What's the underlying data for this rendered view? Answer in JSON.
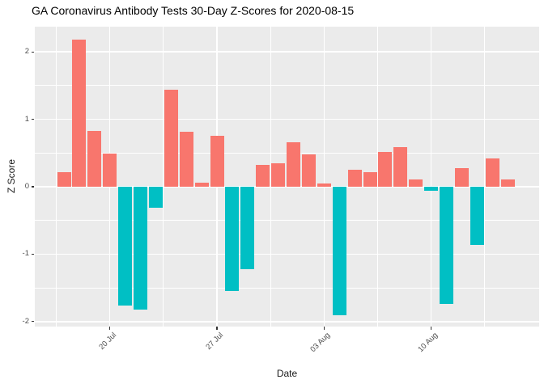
{
  "chart_data": {
    "type": "bar",
    "title": "GA Coronavirus Antibody Tests 30-Day Z-Scores for 2020-08-15",
    "xlabel": "Date",
    "ylabel": "Z Score",
    "x": [
      "17 Jul",
      "18 Jul",
      "19 Jul",
      "20 Jul",
      "21 Jul",
      "22 Jul",
      "23 Jul",
      "24 Jul",
      "25 Jul",
      "26 Jul",
      "27 Jul",
      "28 Jul",
      "29 Jul",
      "30 Jul",
      "31 Jul",
      "01 Aug",
      "02 Aug",
      "03 Aug",
      "04 Aug",
      "05 Aug",
      "06 Aug",
      "07 Aug",
      "08 Aug",
      "09 Aug",
      "10 Aug",
      "11 Aug",
      "12 Aug",
      "13 Aug",
      "14 Aug",
      "15 Aug"
    ],
    "values": [
      0.21,
      2.18,
      0.83,
      0.49,
      -1.76,
      -1.82,
      -0.31,
      1.44,
      0.81,
      0.06,
      0.75,
      -1.55,
      -1.22,
      0.32,
      0.35,
      0.66,
      0.48,
      0.05,
      -1.91,
      0.25,
      0.22,
      0.51,
      0.59,
      0.11,
      -0.06,
      -1.74,
      0.28,
      -0.86,
      0.42,
      0.11
    ],
    "x_tick_labels": [
      "20 Jul",
      "27 Jul",
      "03 Aug",
      "10 Aug"
    ],
    "x_tick_indices": [
      3,
      10,
      17,
      24
    ],
    "x_minor_indices": [
      -0.5,
      6.5,
      13.5,
      20.5,
      27.5
    ],
    "y_ticks": [
      "2",
      "1",
      "0",
      "-1",
      "-2"
    ],
    "y_tick_values": [
      2,
      1,
      0,
      -1,
      -2
    ],
    "y_minor_values": [
      1.5,
      0.5,
      -0.5,
      -1.5
    ],
    "ylim": [
      -2.075,
      2.375
    ],
    "grid": true,
    "legend": "none",
    "colors": {
      "positive": "#F8766D",
      "negative": "#00BFC4",
      "panel_bg": "#EBEBEB",
      "grid": "#FFFFFF",
      "tick_text": "#4D4D4D",
      "axis_title_text": "#1A1A1A",
      "title_text": "#000000"
    }
  }
}
